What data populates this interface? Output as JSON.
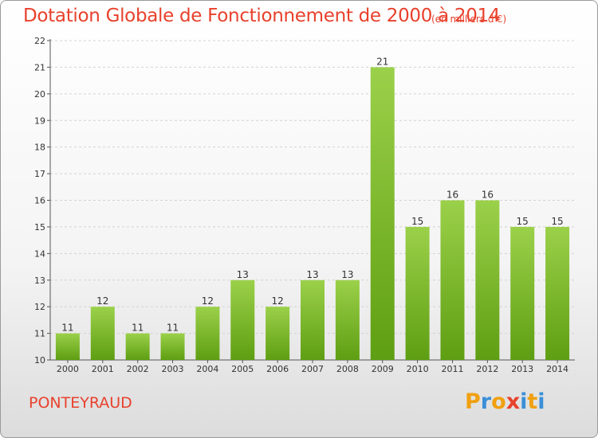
{
  "title": "Dotation Globale de Fonctionnement de 2000 à 2014",
  "unit": "(en milliers d'€)",
  "commune": "PONTEYRAUD",
  "logo": {
    "letters": [
      "P",
      "r",
      "o",
      "x",
      "i",
      "t",
      "i"
    ],
    "colors": [
      "#f0a010",
      "#3a8fd8",
      "#f0a010",
      "#e8412c",
      "#3a8fd8",
      "#f0a010",
      "#3a8fd8"
    ]
  },
  "colors": {
    "title": "#e8412c",
    "bar_light": "#9bd14a",
    "bar_dark": "#5e9e12"
  },
  "chart_data": {
    "type": "bar",
    "categories": [
      "2000",
      "2001",
      "2002",
      "2003",
      "2004",
      "2005",
      "2006",
      "2007",
      "2008",
      "2009",
      "2010",
      "2011",
      "2012",
      "2013",
      "2014"
    ],
    "values": [
      11,
      12,
      11,
      11,
      12,
      13,
      12,
      13,
      13,
      21,
      15,
      16,
      16,
      15,
      15
    ],
    "ylim": [
      10,
      22
    ],
    "yticks": [
      "10",
      "11",
      "12",
      "13",
      "14",
      "15",
      "16",
      "17",
      "18",
      "19",
      "20",
      "21",
      "22"
    ],
    "grid": true
  }
}
